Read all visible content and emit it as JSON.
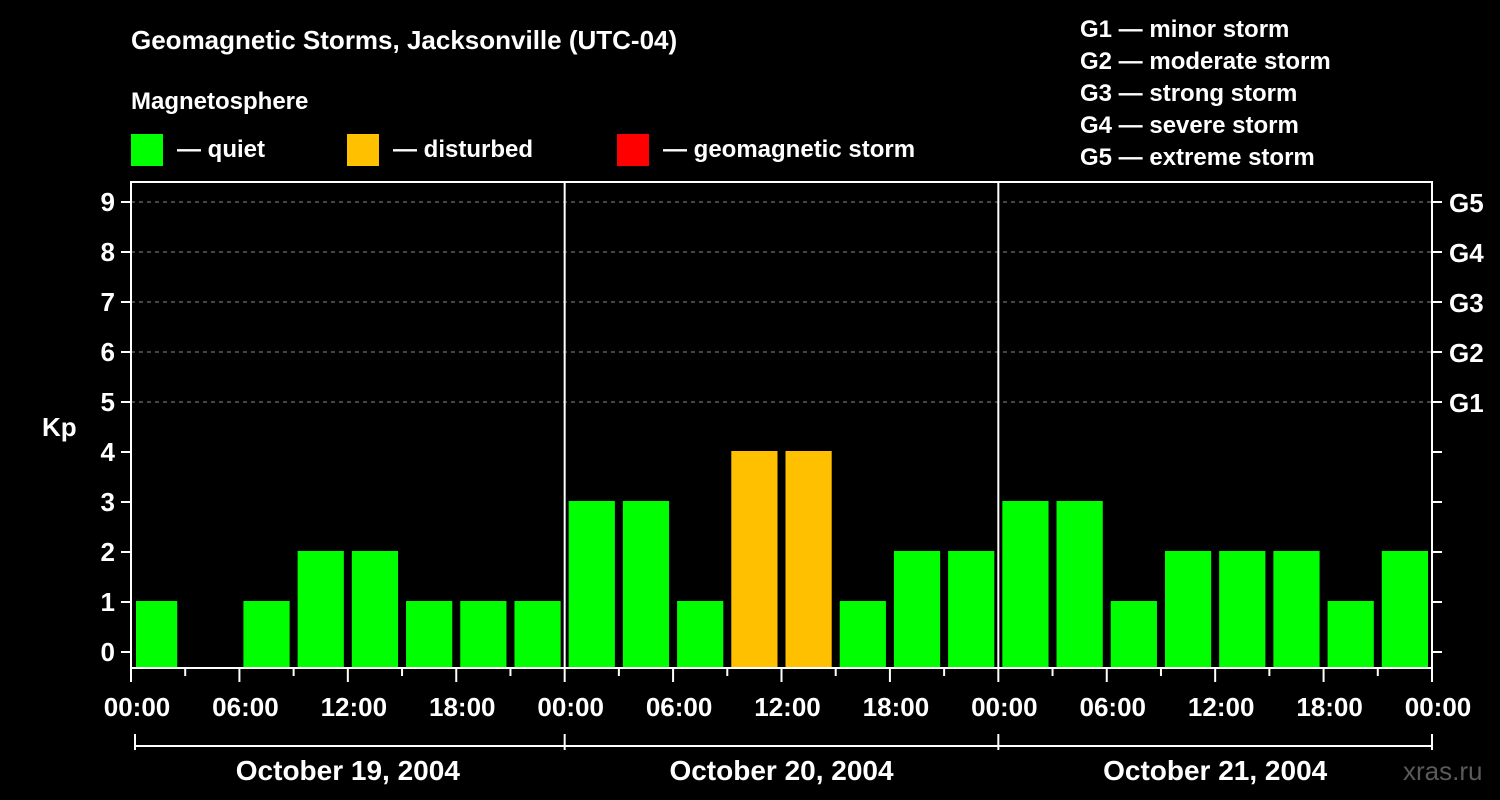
{
  "chart_data": {
    "type": "bar",
    "title": "Geomagnetic Storms, Jacksonville (UTC-04)",
    "subtitle": "Magnetosphere",
    "ylabel": "Kp",
    "ylim": [
      0,
      9
    ],
    "yticks": [
      "0",
      "1",
      "2",
      "3",
      "4",
      "5",
      "6",
      "7",
      "8",
      "9"
    ],
    "g_scale_ticks": [
      {
        "kp": 5,
        "label": "G1"
      },
      {
        "kp": 6,
        "label": "G2"
      },
      {
        "kp": 7,
        "label": "G3"
      },
      {
        "kp": 8,
        "label": "G4"
      },
      {
        "kp": 9,
        "label": "G5"
      }
    ],
    "x_time_ticks": [
      "00:00",
      "06:00",
      "12:00",
      "18:00",
      "00:00",
      "06:00",
      "12:00",
      "18:00",
      "00:00",
      "06:00",
      "12:00",
      "18:00",
      "00:00"
    ],
    "days": [
      "October 19, 2004",
      "October 20, 2004",
      "October 21, 2004"
    ],
    "legend": [
      {
        "label": "— quiet",
        "color": "#00ff00"
      },
      {
        "label": "— disturbed",
        "color": "#ffc000"
      },
      {
        "label": "— geomagnetic storm",
        "color": "#ff0000"
      }
    ],
    "storm_scale_legend": [
      "G1 — minor storm",
      "G2 — moderate storm",
      "G3 — strong storm",
      "G4 — severe storm",
      "G5 — extreme storm"
    ],
    "interval_hours": 3,
    "series": [
      {
        "name": "Kp",
        "values": [
          1,
          0,
          1,
          2,
          2,
          1,
          1,
          1,
          3,
          3,
          1,
          4,
          4,
          1,
          2,
          2,
          3,
          3,
          1,
          2,
          2,
          2,
          1,
          2
        ],
        "status": [
          "quiet",
          "quiet",
          "quiet",
          "quiet",
          "quiet",
          "quiet",
          "quiet",
          "quiet",
          "quiet",
          "quiet",
          "quiet",
          "disturbed",
          "disturbed",
          "quiet",
          "quiet",
          "quiet",
          "quiet",
          "quiet",
          "quiet",
          "quiet",
          "quiet",
          "quiet",
          "quiet",
          "quiet"
        ]
      }
    ],
    "status_colors": {
      "quiet": "#00ff00",
      "disturbed": "#ffc000",
      "storm": "#ff0000"
    },
    "grid": true,
    "watermark": "xras.ru"
  }
}
